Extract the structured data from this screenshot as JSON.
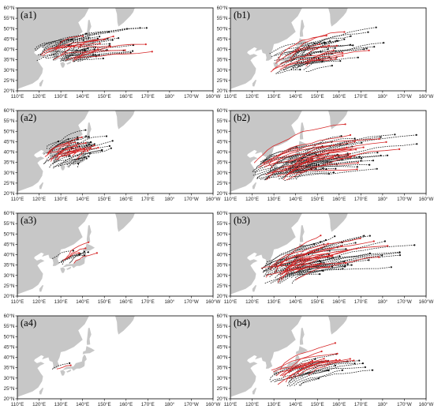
{
  "x_ticks": [
    "110°E",
    "120°E",
    "130°E",
    "140°E",
    "150°E",
    "160°E",
    "170°E",
    "180°",
    "170°W",
    "160°W"
  ],
  "y_ticks": [
    "20°N",
    "25°N",
    "30°N",
    "35°N",
    "40°N",
    "45°N",
    "50°N",
    "55°N",
    "60°N"
  ],
  "panels": [
    {
      "id": "a1",
      "label": "(a1)"
    },
    {
      "id": "b1",
      "label": "(b1)"
    },
    {
      "id": "a2",
      "label": "(a2)"
    },
    {
      "id": "b2",
      "label": "(b2)"
    },
    {
      "id": "a3",
      "label": "(a3)"
    },
    {
      "id": "b3",
      "label": "(b3)"
    },
    {
      "id": "a4",
      "label": "(a4)"
    },
    {
      "id": "b4",
      "label": "(b4)"
    }
  ],
  "colors": {
    "land": "#c7c7c7",
    "track_dashed": "#1a1a1a",
    "track_solid": "#444444",
    "track_highlight": "#d62728"
  }
}
